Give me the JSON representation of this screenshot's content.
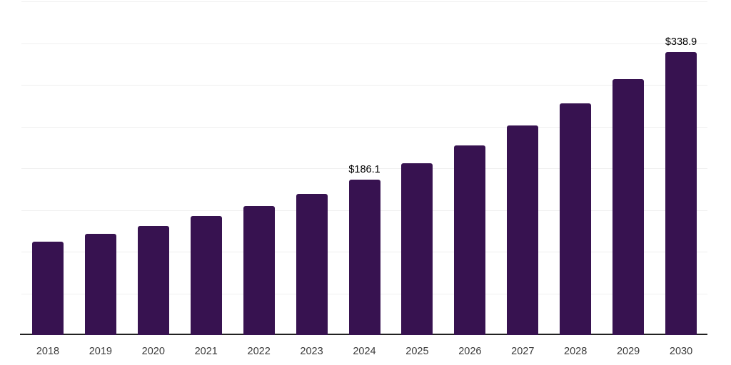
{
  "chart_data": {
    "type": "bar",
    "title": "",
    "xlabel": "",
    "ylabel": "",
    "categories": [
      "2018",
      "2019",
      "2020",
      "2021",
      "2022",
      "2023",
      "2024",
      "2025",
      "2026",
      "2027",
      "2028",
      "2029",
      "2030"
    ],
    "values": [
      111.8,
      121.2,
      130.6,
      142.6,
      154.5,
      169.0,
      186.1,
      205.7,
      227.1,
      251.0,
      277.4,
      306.5,
      338.9
    ],
    "data_labels": {
      "2024": "$186.1",
      "2030": "$338.9"
    },
    "ylim": [
      0,
      400
    ],
    "grid_step": 50,
    "grid": true,
    "legend": false,
    "y_axis_labels_visible": false,
    "colors": {
      "bar": "#371250",
      "gridline": "#efefef",
      "axis": "#222222",
      "tick_label": "#3a3a3a",
      "data_label": "#000000",
      "background": "#ffffff"
    }
  }
}
